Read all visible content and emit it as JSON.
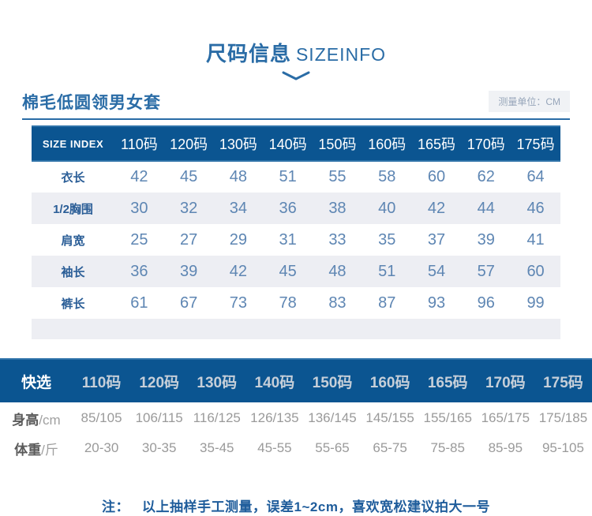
{
  "header": {
    "title_cn": "尺码信息",
    "title_en": "SIZEINFO"
  },
  "product": {
    "name": "棉毛低圆领男女套",
    "unit_label": "测量单位：CM"
  },
  "size_table": {
    "columns": [
      "SIZE INDEX",
      "110码",
      "120码",
      "130码",
      "140码",
      "150码",
      "160码",
      "165码",
      "170码",
      "175码"
    ],
    "rows": [
      {
        "label": "衣长",
        "values": [
          "42",
          "45",
          "48",
          "51",
          "55",
          "58",
          "60",
          "62",
          "64"
        ]
      },
      {
        "label": "1/2胸围",
        "values": [
          "30",
          "32",
          "34",
          "36",
          "38",
          "40",
          "42",
          "44",
          "46"
        ]
      },
      {
        "label": "肩宽",
        "values": [
          "25",
          "27",
          "29",
          "31",
          "33",
          "35",
          "37",
          "39",
          "41"
        ]
      },
      {
        "label": "袖长",
        "values": [
          "36",
          "39",
          "42",
          "45",
          "48",
          "51",
          "54",
          "57",
          "60"
        ]
      },
      {
        "label": "裤长",
        "values": [
          "61",
          "67",
          "73",
          "78",
          "83",
          "87",
          "93",
          "96",
          "99"
        ]
      },
      {
        "label": "",
        "spacer": true,
        "values": [
          "",
          "",
          "",
          "",
          "",
          "",
          "",
          "",
          ""
        ]
      }
    ]
  },
  "quick_table": {
    "columns": [
      "快选",
      "110码",
      "120码",
      "130码",
      "140码",
      "150码",
      "160码",
      "165码",
      "170码",
      "175码"
    ],
    "rows": [
      {
        "label": "身高",
        "unit": "/cm",
        "values": [
          "85/105",
          "106/115",
          "116/125",
          "126/135",
          "136/145",
          "145/155",
          "155/165",
          "165/175",
          "175/185"
        ]
      },
      {
        "label": "体重",
        "unit": "/斤",
        "values": [
          "20-30",
          "30-35",
          "35-45",
          "45-55",
          "55-65",
          "65-75",
          "75-85",
          "85-95",
          "95-105"
        ]
      }
    ]
  },
  "note": {
    "prefix": "注：",
    "text": "以上抽样手工测量，误差1~2cm，喜欢宽松建议拍大一号"
  },
  "colors": {
    "accent_blue": "#2a6ca6",
    "table_header_bg": "#0b5591",
    "alt_row_bg": "#edeef3",
    "value_blue": "#5e86b3",
    "note_blue": "#1e5c9b",
    "gray_value": "#9a9a9a"
  }
}
